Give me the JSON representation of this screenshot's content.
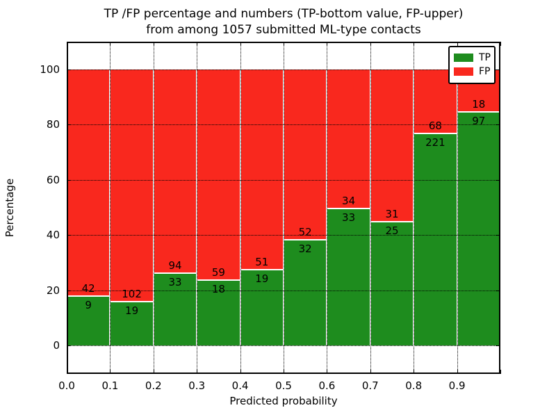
{
  "figure": {
    "title_line1": "TP /FP percentage and numbers (TP-bottom value, FP-upper)",
    "title_line2": "from among 1057 submitted ML-type contacts"
  },
  "axes": {
    "xlabel": "Predicted probability",
    "ylabel": "Percentage",
    "xtick_labels": [
      "0.0",
      "0.1",
      "0.2",
      "0.3",
      "0.4",
      "0.5",
      "0.6",
      "0.7",
      "0.8",
      "0.9"
    ],
    "ytick_values": [
      0,
      20,
      40,
      60,
      80,
      100
    ]
  },
  "legend": {
    "entries": [
      {
        "label": "TP",
        "color": "#1e8c1e"
      },
      {
        "label": "FP",
        "color": "#f9281e"
      }
    ]
  },
  "chart_data": {
    "type": "bar",
    "stacked": true,
    "normalized_to_percent": true,
    "title": "TP /FP percentage and numbers (TP-bottom value, FP-upper)\nfrom among 1057 submitted ML-type contacts",
    "xlabel": "Predicted probability",
    "ylabel": "Percentage",
    "categories": [
      "0.0",
      "0.1",
      "0.2",
      "0.3",
      "0.4",
      "0.5",
      "0.6",
      "0.7",
      "0.8",
      "0.9"
    ],
    "bin_width": 0.1,
    "xlim": [
      0.0,
      1.0
    ],
    "ylim": [
      -10,
      110
    ],
    "yticks": [
      0,
      20,
      40,
      60,
      80,
      100
    ],
    "grid": true,
    "legend_position": "upper right",
    "total_contacts": 1057,
    "series": [
      {
        "name": "TP",
        "color": "#1e8c1e",
        "counts": [
          9,
          19,
          33,
          18,
          19,
          32,
          33,
          25,
          221,
          97
        ],
        "percent": [
          17.65,
          15.7,
          25.98,
          23.38,
          27.14,
          38.1,
          49.25,
          44.64,
          76.47,
          84.35
        ]
      },
      {
        "name": "FP",
        "color": "#f9281e",
        "counts": [
          42,
          102,
          94,
          59,
          51,
          52,
          34,
          31,
          68,
          18
        ],
        "percent": [
          82.35,
          84.3,
          74.02,
          76.62,
          72.86,
          61.9,
          50.75,
          55.36,
          23.53,
          15.65
        ]
      }
    ]
  }
}
